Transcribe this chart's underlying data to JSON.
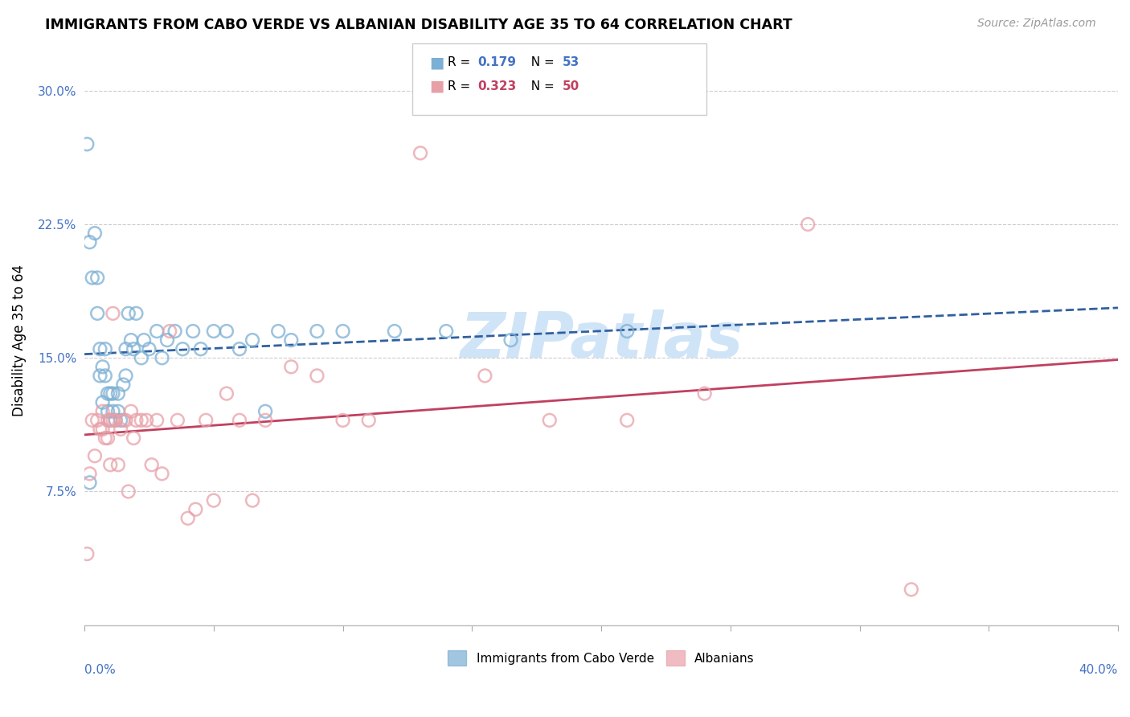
{
  "title": "IMMIGRANTS FROM CABO VERDE VS ALBANIAN DISABILITY AGE 35 TO 64 CORRELATION CHART",
  "source": "Source: ZipAtlas.com",
  "ylabel": "Disability Age 35 to 64",
  "ytick_vals": [
    0.075,
    0.15,
    0.225,
    0.3
  ],
  "ytick_labels": [
    "7.5%",
    "15.0%",
    "22.5%",
    "30.0%"
  ],
  "xlim": [
    0.0,
    0.4
  ],
  "ylim": [
    0.0,
    0.32
  ],
  "legend_blue_r": "0.179",
  "legend_blue_n": "53",
  "legend_pink_r": "0.323",
  "legend_pink_n": "50",
  "legend_label_blue": "Immigrants from Cabo Verde",
  "legend_label_pink": "Albanians",
  "blue_scatter_color": "#7bafd4",
  "pink_scatter_color": "#e8a0a8",
  "trendline_blue_color": "#3060a0",
  "trendline_pink_color": "#c04060",
  "watermark": "ZIPatlas",
  "watermark_color": "#d0e4f7",
  "cabo_verde_x": [
    0.001,
    0.002,
    0.003,
    0.004,
    0.005,
    0.005,
    0.006,
    0.006,
    0.007,
    0.007,
    0.008,
    0.008,
    0.009,
    0.009,
    0.01,
    0.01,
    0.011,
    0.011,
    0.012,
    0.013,
    0.013,
    0.014,
    0.015,
    0.016,
    0.016,
    0.017,
    0.018,
    0.019,
    0.02,
    0.022,
    0.023,
    0.025,
    0.028,
    0.03,
    0.032,
    0.035,
    0.038,
    0.042,
    0.045,
    0.05,
    0.055,
    0.06,
    0.065,
    0.07,
    0.075,
    0.08,
    0.09,
    0.1,
    0.12,
    0.14,
    0.165,
    0.21,
    0.002
  ],
  "cabo_verde_y": [
    0.27,
    0.215,
    0.195,
    0.22,
    0.195,
    0.175,
    0.155,
    0.14,
    0.145,
    0.125,
    0.155,
    0.14,
    0.13,
    0.12,
    0.13,
    0.115,
    0.13,
    0.12,
    0.115,
    0.13,
    0.12,
    0.115,
    0.135,
    0.155,
    0.14,
    0.175,
    0.16,
    0.155,
    0.175,
    0.15,
    0.16,
    0.155,
    0.165,
    0.15,
    0.16,
    0.165,
    0.155,
    0.165,
    0.155,
    0.165,
    0.165,
    0.155,
    0.16,
    0.12,
    0.165,
    0.16,
    0.165,
    0.165,
    0.165,
    0.165,
    0.16,
    0.165,
    0.08
  ],
  "albanian_x": [
    0.001,
    0.003,
    0.004,
    0.005,
    0.006,
    0.007,
    0.007,
    0.008,
    0.009,
    0.009,
    0.01,
    0.01,
    0.011,
    0.011,
    0.012,
    0.013,
    0.014,
    0.015,
    0.016,
    0.017,
    0.018,
    0.019,
    0.02,
    0.022,
    0.024,
    0.026,
    0.028,
    0.03,
    0.033,
    0.036,
    0.04,
    0.043,
    0.047,
    0.05,
    0.055,
    0.06,
    0.065,
    0.07,
    0.08,
    0.09,
    0.1,
    0.11,
    0.13,
    0.155,
    0.18,
    0.21,
    0.24,
    0.28,
    0.32,
    0.002
  ],
  "albanian_y": [
    0.04,
    0.115,
    0.095,
    0.115,
    0.11,
    0.12,
    0.11,
    0.105,
    0.115,
    0.105,
    0.115,
    0.09,
    0.175,
    0.115,
    0.115,
    0.09,
    0.11,
    0.115,
    0.115,
    0.075,
    0.12,
    0.105,
    0.115,
    0.115,
    0.115,
    0.09,
    0.115,
    0.085,
    0.165,
    0.115,
    0.06,
    0.065,
    0.115,
    0.07,
    0.13,
    0.115,
    0.07,
    0.115,
    0.145,
    0.14,
    0.115,
    0.115,
    0.265,
    0.14,
    0.115,
    0.115,
    0.13,
    0.225,
    0.02,
    0.085
  ]
}
